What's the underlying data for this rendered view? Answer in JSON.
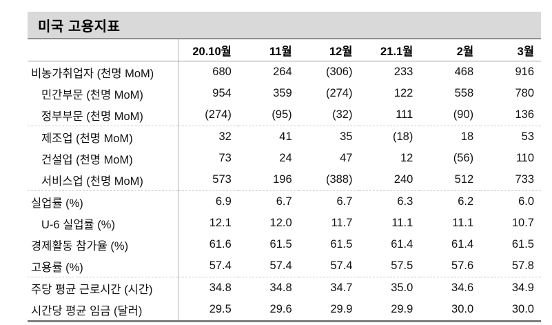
{
  "colors": {
    "title_bar_bg": "#d9d9d9",
    "title_bar_border": "#8f8f8f",
    "header_border": "#9a9a9a",
    "vertical_divider": "#b3b3b3",
    "section_divider_dashed": "#c9c9c9",
    "table_bottom_border": "#7f7f7f",
    "text": "#111111"
  },
  "table": {
    "title": "미국 고용지표",
    "columns": [
      "20.10월",
      "11월",
      "12월",
      "21.1월",
      "2월",
      "3월"
    ],
    "rows": [
      {
        "label": "비농가취업자 (천명 MoM)",
        "indent": false,
        "section_end": false,
        "values": [
          "680",
          "264",
          "(306)",
          "233",
          "468",
          "916"
        ]
      },
      {
        "label": "민간부문 (천명 MoM)",
        "indent": true,
        "section_end": false,
        "values": [
          "954",
          "359",
          "(274)",
          "122",
          "558",
          "780"
        ]
      },
      {
        "label": "정부부문 (천명 MoM)",
        "indent": true,
        "section_end": true,
        "values": [
          "(274)",
          "(95)",
          "(32)",
          "111",
          "(90)",
          "136"
        ]
      },
      {
        "label": "제조업 (천명 MoM)",
        "indent": true,
        "section_end": false,
        "values": [
          "32",
          "41",
          "35",
          "(18)",
          "18",
          "53"
        ]
      },
      {
        "label": "건설업 (천명 MoM)",
        "indent": true,
        "section_end": false,
        "values": [
          "73",
          "24",
          "47",
          "12",
          "(56)",
          "110"
        ]
      },
      {
        "label": "서비스업 (천명 MoM)",
        "indent": true,
        "section_end": true,
        "values": [
          "573",
          "196",
          "(388)",
          "240",
          "512",
          "733"
        ]
      },
      {
        "label": "실업률 (%)",
        "indent": false,
        "section_end": false,
        "values": [
          "6.9",
          "6.7",
          "6.7",
          "6.3",
          "6.2",
          "6.0"
        ]
      },
      {
        "label": "U-6 실업률 (%)",
        "indent": true,
        "section_end": false,
        "values": [
          "12.1",
          "12.0",
          "11.7",
          "11.1",
          "11.1",
          "10.7"
        ]
      },
      {
        "label": "경제활동 참가율 (%)",
        "indent": false,
        "section_end": false,
        "values": [
          "61.6",
          "61.5",
          "61.5",
          "61.4",
          "61.4",
          "61.5"
        ]
      },
      {
        "label": "고용률 (%)",
        "indent": false,
        "section_end": true,
        "values": [
          "57.4",
          "57.4",
          "57.4",
          "57.5",
          "57.6",
          "57.8"
        ]
      },
      {
        "label": "주당 평균 근로시간 (시간)",
        "indent": false,
        "section_end": false,
        "values": [
          "34.8",
          "34.8",
          "34.7",
          "35.0",
          "34.6",
          "34.9"
        ]
      },
      {
        "label": "시간당 평균 임금 (달러)",
        "indent": false,
        "section_end": false,
        "values": [
          "29.5",
          "29.6",
          "29.9",
          "29.9",
          "30.0",
          "30.0"
        ]
      }
    ]
  }
}
